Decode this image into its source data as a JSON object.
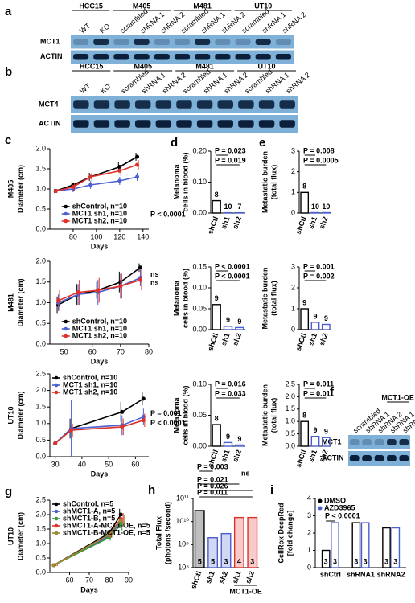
{
  "blots": [
    {
      "panel": "a",
      "groups": [
        {
          "label": "HCC15",
          "lanes": [
            "WT",
            "KO"
          ]
        },
        {
          "label": "M405",
          "lanes": [
            "scrambled",
            "shRNA 1",
            "shRNA 2"
          ]
        },
        {
          "label": "M481",
          "lanes": [
            "scrambled",
            "shRNA 1",
            "shRNA 2"
          ]
        },
        {
          "label": "UT10",
          "lanes": [
            "scrambled",
            "shRNA 1",
            "shRNA 2"
          ]
        }
      ],
      "rows": [
        "MCT1",
        "ACTIN"
      ]
    },
    {
      "panel": "b",
      "groups": [
        {
          "label": "HCC15",
          "lanes": [
            "WT",
            "KO"
          ]
        },
        {
          "label": "M405",
          "lanes": [
            "scrambled",
            "shRNA 1",
            "shRNA 2"
          ]
        },
        {
          "label": "M481",
          "lanes": [
            "scrambled",
            "shRNA 1",
            "shRNA 2"
          ]
        },
        {
          "label": "UT10",
          "lanes": [
            "scrambled",
            "shRNA 1",
            "shRNA 2"
          ]
        }
      ],
      "rows": [
        "MCT4",
        "ACTIN"
      ]
    },
    {
      "panel": "f",
      "groups": [
        {
          "label": null,
          "lanes": [
            "scrambled",
            "shRNA 1",
            "shRNA 2"
          ]
        },
        {
          "label": "MCT1-OE",
          "lanes": [
            "shRNA 1",
            "shRNA 2"
          ]
        }
      ],
      "rows": [
        "MCT1",
        "ACTIN"
      ]
    }
  ],
  "chart_data": [
    {
      "type": "line",
      "panel": "c",
      "row_label": "M405",
      "xlabel": "Days",
      "ylabel": [
        "Diameter (cm)"
      ],
      "x": [
        65,
        80,
        95,
        120,
        135
      ],
      "xlim": [
        60,
        145
      ],
      "xticks": [
        80,
        100,
        120,
        140
      ],
      "ylim": [
        0,
        2.0
      ],
      "yticks": [
        {
          "value": 0,
          "label": "0.0"
        },
        {
          "value": 0.5,
          "label": "0.5"
        },
        {
          "value": 1.0,
          "label": "1.0"
        },
        {
          "value": 1.5,
          "label": "1.5"
        },
        {
          "value": 2.0,
          "label": "2.0"
        }
      ],
      "legend": "lower right",
      "series": [
        {
          "name": "shControl, n=10",
          "color": "#000000",
          "values": [
            0.95,
            1.1,
            1.3,
            1.55,
            1.8
          ],
          "errors": [
            0.05,
            0.1,
            0.1,
            0.12,
            0.1
          ]
        },
        {
          "name": "MCT1 sh1, n=10",
          "color": "#4a5fd0",
          "values": [
            0.95,
            1.0,
            1.1,
            1.2,
            1.3
          ],
          "errors": [
            0.05,
            0.08,
            0.1,
            0.1,
            0.1
          ]
        },
        {
          "name": "MCT1 sh2, n=10",
          "color": "#e0302a",
          "values": [
            0.95,
            1.05,
            1.3,
            1.45,
            1.6
          ],
          "errors": [
            0.05,
            0.1,
            0.1,
            0.12,
            0.12
          ]
        }
      ],
      "annotations": [
        "P < 0.0001"
      ]
    },
    {
      "type": "line",
      "row_label": "M481",
      "xlabel": "Days",
      "ylabel": [
        "Diameter (cm)"
      ],
      "x": [
        48,
        55,
        62,
        70,
        77
      ],
      "xlim": [
        45,
        80
      ],
      "xticks": [
        50,
        60,
        70,
        80
      ],
      "ylim": [
        0,
        2.0
      ],
      "yticks": [
        {
          "value": 0,
          "label": "0.0"
        },
        {
          "value": 0.5,
          "label": "0.5"
        },
        {
          "value": 1.0,
          "label": "1.0"
        },
        {
          "value": 1.5,
          "label": "1.5"
        },
        {
          "value": 2.0,
          "label": "2.0"
        }
      ],
      "legend": "lower right",
      "series": [
        {
          "name": "shControl, n=10",
          "color": "#000000",
          "values": [
            0.95,
            1.2,
            1.3,
            1.5,
            1.85
          ],
          "errors": [
            0.2,
            0.25,
            0.2,
            0.25,
            0.1
          ]
        },
        {
          "name": "MCT1 sh1, n=10",
          "color": "#4a5fd0",
          "values": [
            1.0,
            1.2,
            1.25,
            1.4,
            1.6
          ],
          "errors": [
            0.2,
            0.25,
            0.3,
            0.3,
            0.2
          ]
        },
        {
          "name": "MCT1 sh2, n=10",
          "color": "#e0302a",
          "values": [
            1.05,
            1.25,
            1.3,
            1.4,
            1.55
          ],
          "errors": [
            0.25,
            0.3,
            0.3,
            0.3,
            0.25
          ]
        }
      ],
      "annotations": [
        "ns",
        "ns"
      ]
    },
    {
      "type": "line",
      "row_label": "UT10",
      "xlabel": "Days",
      "ylabel": [
        "Diameter (cm)"
      ],
      "x": [
        30,
        36,
        55,
        63
      ],
      "xlim": [
        28,
        65
      ],
      "xticks": [
        30,
        40,
        50,
        60
      ],
      "ylim": [
        0,
        2.5
      ],
      "yticks": [
        {
          "value": 0,
          "label": "0.0"
        },
        {
          "value": 0.5,
          "label": "0.5"
        },
        {
          "value": 1.0,
          "label": "1.0"
        },
        {
          "value": 1.5,
          "label": "1.5"
        },
        {
          "value": 2.0,
          "label": "2.0"
        },
        {
          "value": 2.5,
          "label": "2.5"
        }
      ],
      "legend": "upper left",
      "series": [
        {
          "name": "shControl, n=10",
          "color": "#000000",
          "values": [
            0.4,
            0.85,
            1.35,
            1.75
          ],
          "errors": [
            0.05,
            0.3,
            0.3,
            0.2
          ]
        },
        {
          "name": "MCT1 sh1, n=10",
          "color": "#4a5fd0",
          "values": [
            0.4,
            0.85,
            0.95,
            1.2
          ],
          "errors": [
            0.05,
            0.85,
            0.3,
            0.25
          ]
        },
        {
          "name": "MCT1 sh2, n=10",
          "color": "#e0302a",
          "values": [
            0.4,
            0.8,
            0.9,
            1.1
          ],
          "errors": [
            0.05,
            0.2,
            0.25,
            0.2
          ]
        }
      ],
      "annotations": [
        "P = 0.001",
        "P < 0.0001"
      ]
    },
    {
      "type": "bar",
      "panel": "d",
      "ylabel": [
        "Melanoma",
        "cells in blood (%)"
      ],
      "categories": [
        "shCtl",
        "sh1",
        "sh2"
      ],
      "values": [
        0.04,
        0.001,
        0.001
      ],
      "colors": [
        "#000000",
        "#4a5fd0",
        "#4a5fd0"
      ],
      "ylim": [
        0,
        0.2
      ],
      "yticks": [
        {
          "value": 0,
          "label": "0.00"
        },
        {
          "value": 0.1,
          "label": "0.10"
        },
        {
          "value": 0.2,
          "label": "0.20"
        }
      ],
      "n_labels": [
        "8",
        "10",
        "7"
      ],
      "annotations": [
        "P = 0.023",
        "P = 0.019"
      ]
    },
    {
      "type": "bar",
      "ylabel": [
        "Melanoma",
        "cells in blood (%)"
      ],
      "categories": [
        "shCtl",
        "sh1",
        "sh2"
      ],
      "values": [
        0.06,
        0.008,
        0.005
      ],
      "colors": [
        "#000000",
        "#4a5fd0",
        "#4a5fd0"
      ],
      "ylim": [
        0,
        0.15
      ],
      "yticks": [
        {
          "value": 0,
          "label": "0.00"
        },
        {
          "value": 0.05,
          "label": "0.05"
        },
        {
          "value": 0.1,
          "label": "0.10"
        },
        {
          "value": 0.15,
          "label": "0.15"
        }
      ],
      "n_labels": [
        "9",
        "9",
        "9"
      ],
      "annotations": [
        "P < 0.0001",
        "P < 0.0001"
      ]
    },
    {
      "type": "bar",
      "ylabel": [
        "Melanoma",
        "cells in blood (%)"
      ],
      "categories": [
        "shCtl",
        "sh1",
        "sh2"
      ],
      "values": [
        0.035,
        0.006,
        0.002
      ],
      "colors": [
        "#000000",
        "#4a5fd0",
        "#4a5fd0"
      ],
      "ylim": [
        0,
        0.1
      ],
      "yticks": [
        {
          "value": 0,
          "label": "0.00"
        },
        {
          "value": 0.05,
          "label": "0.05"
        },
        {
          "value": 0.1,
          "label": "0.10"
        }
      ],
      "n_labels": [
        "8",
        "9",
        "9"
      ],
      "annotations": [
        "P = 0.016",
        "P = 0.033"
      ]
    },
    {
      "type": "bar",
      "panel": "e",
      "ylabel": [
        "Metastatic burden",
        "(total flux)"
      ],
      "categories": [
        "shCtl",
        "sh1",
        "sh2"
      ],
      "values": [
        1.0,
        0.02,
        0.02
      ],
      "colors": [
        "#000000",
        "#4a5fd0",
        "#4a5fd0"
      ],
      "ylim": [
        0,
        3
      ],
      "yticks": [
        0,
        1,
        2,
        3
      ],
      "n_labels": [
        "8",
        "10",
        "10"
      ],
      "annotations": [
        "P = 0.008",
        "P = 0.0005"
      ]
    },
    {
      "type": "bar",
      "ylabel": [
        "Metastatic burden",
        "(total flux)"
      ],
      "categories": [
        "shCtl",
        "sh1",
        "sh2"
      ],
      "values": [
        1.0,
        0.35,
        0.25
      ],
      "colors": [
        "#000000",
        "#4a5fd0",
        "#4a5fd0"
      ],
      "ylim": [
        0,
        3
      ],
      "yticks": [
        0,
        1,
        2,
        3
      ],
      "n_labels": [
        "9",
        "9",
        "9"
      ],
      "annotations": [
        "P = 0.001",
        "P = 0.002"
      ]
    },
    {
      "type": "bar",
      "ylabel": [
        "Metastatic burden",
        "(total flux)"
      ],
      "categories": [
        "shCtl",
        "sh1",
        "sh2"
      ],
      "values": [
        1.0,
        0.4,
        0.35
      ],
      "colors": [
        "#000000",
        "#4a5fd0",
        "#4a5fd0"
      ],
      "ylim": [
        0,
        2.5
      ],
      "yticks": [
        {
          "value": 0,
          "label": "0.0"
        },
        {
          "value": 0.5,
          "label": "0.5"
        },
        {
          "value": 1.0,
          "label": "1.0"
        },
        {
          "value": 1.5,
          "label": "1.5"
        },
        {
          "value": 2.0,
          "label": "2.0"
        },
        {
          "value": 2.5,
          "label": "2.5"
        }
      ],
      "n_labels": [
        "8",
        "9",
        "9"
      ],
      "annotations": [
        "P = 0.011",
        "P = 0.011"
      ]
    },
    {
      "type": "line",
      "panel": "g",
      "row_label": "UT10",
      "xlabel": "Days",
      "ylabel": [
        "Diameter (cm)"
      ],
      "x": [
        52,
        80,
        86
      ],
      "xlim": [
        50,
        90
      ],
      "xticks": [
        60,
        70,
        80,
        90
      ],
      "ylim": [
        0,
        2.5
      ],
      "yticks": [
        {
          "value": 0,
          "label": "0.0"
        },
        {
          "value": 0.5,
          "label": "0.5"
        },
        {
          "value": 1.0,
          "label": "1.0"
        },
        {
          "value": 1.5,
          "label": "1.5"
        },
        {
          "value": 2.0,
          "label": "2.0"
        },
        {
          "value": 2.5,
          "label": "2.5"
        }
      ],
      "legend": "upper left",
      "series": [
        {
          "name": "shControl, n=5",
          "color": "#000000",
          "values": [
            0.25,
            1.35,
            2.0
          ],
          "errors": [
            0.03,
            0.1,
            0.2
          ]
        },
        {
          "name": "shMCT1-A, n=5",
          "color": "#4a5fd0",
          "values": [
            0.25,
            1.25,
            1.75
          ],
          "errors": [
            0.03,
            0.1,
            0.2
          ]
        },
        {
          "name": "shMCT1-B, n=5",
          "color": "#3a9a3a",
          "values": [
            0.25,
            1.2,
            1.65
          ],
          "errors": [
            0.03,
            0.1,
            0.2
          ]
        },
        {
          "name": "shMCT1-A-MCT1-OE, n=5",
          "color": "#e0302a",
          "values": [
            0.25,
            1.3,
            1.85
          ],
          "errors": [
            0.03,
            0.1,
            0.2
          ]
        },
        {
          "name": "shMCT1-B-MCT1-OE, n=5",
          "color": "#9a8a30",
          "values": [
            0.25,
            1.3,
            1.8
          ],
          "errors": [
            0.03,
            0.1,
            0.2
          ]
        }
      ]
    },
    {
      "type": "bar",
      "panel": "h",
      "log": true,
      "ylabel": [
        "Total Flux",
        "(photons /second)"
      ],
      "categories": [
        "shCtl",
        "sh1",
        "sh2",
        "sh1",
        "sh2"
      ],
      "group_label": "MCT1-OE",
      "values": [
        30000000000,
        2000000000,
        3000000000,
        15000000000,
        15000000000
      ],
      "colors": [
        "#000000",
        "#4a5fd0",
        "#4a5fd0",
        "#e0302a",
        "#e0302a"
      ],
      "ylim": [
        100000000,
        100000000000
      ],
      "yticks": [
        {
          "value": 100000000,
          "label": "10⁸"
        },
        {
          "value": 1000000000,
          "label": "10⁹"
        },
        {
          "value": 10000000000,
          "label": "10¹⁰"
        },
        {
          "value": 100000000000,
          "label": "10¹¹"
        }
      ],
      "n_labels": [
        "5",
        "5",
        "3",
        "4",
        "3"
      ],
      "annotations": [
        "P = 0.003",
        "ns",
        "P = 0.021",
        "P = 0.026",
        "P = 0.011"
      ]
    },
    {
      "type": "grouped_bar",
      "panel": "i",
      "ylabel": [
        "CellRox DeepRed",
        "[fold change]"
      ],
      "categories": [
        "shCtrl",
        "shRNA1",
        "shRNA2"
      ],
      "ylim": [
        0,
        4
      ],
      "yticks": [
        0,
        1,
        2,
        3,
        4
      ],
      "legend": "upper left",
      "series": [
        {
          "name": "DMSO",
          "color": "#000000",
          "values": [
            1.0,
            2.6,
            2.3
          ]
        },
        {
          "name": "AZD3965",
          "color": "#4a5fd0",
          "values": [
            2.6,
            2.6,
            2.3
          ]
        }
      ],
      "n_labels": [
        "3",
        "3",
        "3"
      ],
      "annotations": [
        "P < 0.0001"
      ]
    }
  ]
}
